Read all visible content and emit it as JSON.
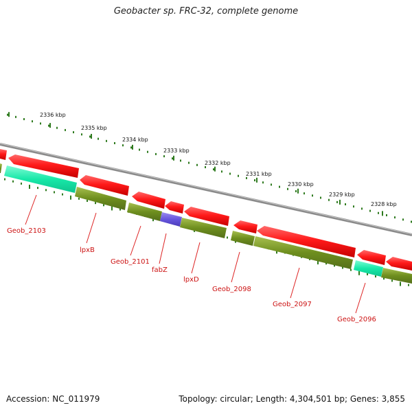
{
  "title": "Geobacter sp. FRC-32, complete genome",
  "footer": {
    "accession": "Accession: NC_011979",
    "summary": "Topology: circular; Length: 4,304,501 bp; Genes: 3,855"
  },
  "colors": {
    "forward_gene": "#ff1a1a",
    "reverse_gene": "#6e8e1e",
    "rna_gene": "#17e8a8",
    "special_gene": "#6655dd",
    "backbone": "#8a8a8a",
    "tick": "#2e7a1e",
    "label": "#cc1111"
  },
  "scale_labels": [
    "2336 kbp",
    "2335 kbp",
    "2334 kbp",
    "2333 kbp",
    "2332 kbp",
    "2331 kbp",
    "2330 kbp",
    "2329 kbp",
    "2328 kbp"
  ],
  "gene_labels": [
    "Geob_2103",
    "lpxB",
    "Geob_2101",
    "fabZ",
    "lpxD",
    "Geob_2098",
    "Geob_2097",
    "Geob_2096"
  ]
}
